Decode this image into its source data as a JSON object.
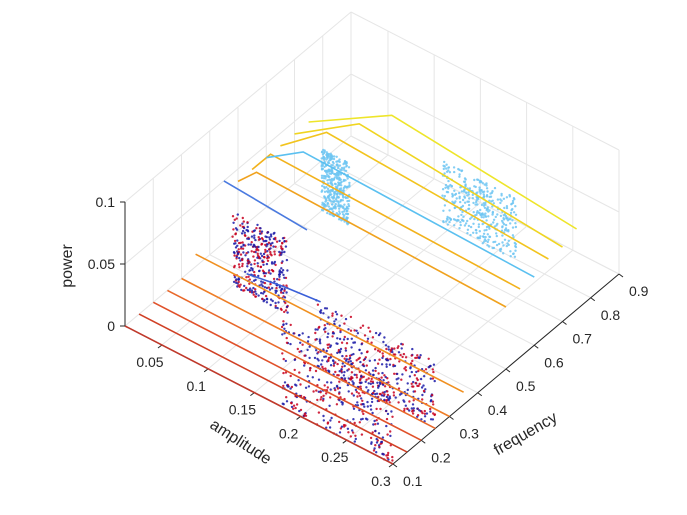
{
  "chart_data": {
    "type": "scatter3d",
    "title": "",
    "xlabel": "amplitude",
    "ylabel": "frequency",
    "zlabel": "power",
    "xlim": [
      0.01,
      0.3
    ],
    "ylim": [
      0.1,
      0.9
    ],
    "zlim": [
      0,
      0.1
    ],
    "x_ticks": [
      "0.05",
      "0.1",
      "0.15",
      "0.2",
      "0.25",
      "0.3"
    ],
    "y_ticks": [
      "0.1",
      "0.2",
      "0.3",
      "0.4",
      "0.5",
      "0.6",
      "0.7",
      "0.8",
      "0.9"
    ],
    "z_ticks": [
      "0",
      "0.05",
      "0.1"
    ],
    "grid": true,
    "colors": {
      "frequency_0_1": "#c0392b",
      "frequency_0_15": "#d04025",
      "frequency_0_2": "#e0512a",
      "frequency_0_25": "#e8682a",
      "frequency_0_3": "#ee7d26",
      "frequency_0_35": "#f09020",
      "frequency_0_4": "#3a5fd8",
      "frequency_0_45": "#4a7ae0",
      "frequency_0_5": "#f0a21e",
      "frequency_0_55": "#f2b21c",
      "frequency_0_6": "#5bc0f0",
      "frequency_0_65": "#f2c41e",
      "frequency_0_7": "#f0d520",
      "frequency_0_75": "#eee52a",
      "chaotic_low": "#1a1aa8",
      "chaotic_high": "#c8001e",
      "chaotic_light": "#6ec6f2"
    },
    "series": [
      {
        "frequency": 0.1,
        "amplitude": [
          0.01,
          0.3
        ],
        "power": [
          0,
          0
        ],
        "color_key": "frequency_0_1"
      },
      {
        "frequency": 0.15,
        "amplitude": [
          0.01,
          0.3
        ],
        "power": [
          0,
          0
        ],
        "color_key": "frequency_0_15"
      },
      {
        "frequency": 0.2,
        "amplitude": [
          0.01,
          0.3
        ],
        "power": [
          0,
          0
        ],
        "color_key": "frequency_0_2"
      },
      {
        "frequency": 0.25,
        "amplitude": [
          0.01,
          0.3
        ],
        "power": [
          0,
          0
        ],
        "color_key": "frequency_0_25"
      },
      {
        "frequency": 0.3,
        "amplitude": [
          0.01,
          0.3
        ],
        "power": [
          0,
          0
        ],
        "color_key": "frequency_0_3"
      },
      {
        "frequency": 0.35,
        "amplitude": [
          0.01,
          0.3
        ],
        "power": [
          0.01,
          0.01
        ],
        "color_key": "frequency_0_35"
      },
      {
        "frequency": 0.4,
        "amplitude": [
          0.05,
          0.09,
          0.13
        ],
        "power": [
          0,
          0.005,
          0.008
        ],
        "color_key": "frequency_0_4"
      },
      {
        "frequency": 0.45,
        "amplitude": [
          0.01,
          0.1
        ],
        "power": [
          0.05,
          0.045
        ],
        "color_key": "frequency_0_45"
      },
      {
        "frequency": 0.5,
        "amplitude": [
          0.01,
          0.03,
          0.3
        ],
        "power": [
          0.04,
          0.055,
          0.05
        ],
        "color_key": "frequency_0_5"
      },
      {
        "frequency": 0.55,
        "amplitude": [
          0.01,
          0.03,
          0.3
        ],
        "power": [
          0.04,
          0.06,
          0.055
        ],
        "color_key": "frequency_0_55"
      },
      {
        "frequency": 0.6,
        "amplitude": [
          0.01,
          0.05,
          0.3
        ],
        "power": [
          0.04,
          0.06,
          0.055
        ],
        "color_key": "frequency_0_6"
      },
      {
        "frequency": 0.65,
        "amplitude": [
          0.01,
          0.06,
          0.3
        ],
        "power": [
          0.04,
          0.07,
          0.06
        ],
        "color_key": "frequency_0_65"
      },
      {
        "frequency": 0.7,
        "amplitude": [
          0.01,
          0.08,
          0.3
        ],
        "power": [
          0.04,
          0.075,
          0.06
        ],
        "color_key": "frequency_0_7"
      },
      {
        "frequency": 0.75,
        "amplitude": [
          0.01,
          0.1,
          0.3
        ],
        "power": [
          0.04,
          0.08,
          0.065
        ],
        "color_key": "frequency_0_75"
      }
    ],
    "chaotic_regions": [
      {
        "frequency": 0.1,
        "amplitude": [
          0.18,
          0.3
        ],
        "power": [
          0,
          0.07
        ],
        "color_key": "chaotic_low"
      },
      {
        "frequency": 0.25,
        "amplitude": [
          0.17,
          0.3
        ],
        "power": [
          0,
          0.055
        ],
        "color_key": "chaotic_low"
      },
      {
        "frequency": 0.35,
        "amplitude": [
          0.05,
          0.11
        ],
        "power": [
          0,
          0.06
        ],
        "color_key": "chaotic_low"
      },
      {
        "frequency": 0.6,
        "amplitude": [
          0.07,
          0.1
        ],
        "power": [
          0.02,
          0.07
        ],
        "color_key": "chaotic_light"
      },
      {
        "frequency": 0.7,
        "amplitude": [
          0.17,
          0.25
        ],
        "power": [
          0.03,
          0.08
        ],
        "color_key": "chaotic_light"
      }
    ]
  }
}
